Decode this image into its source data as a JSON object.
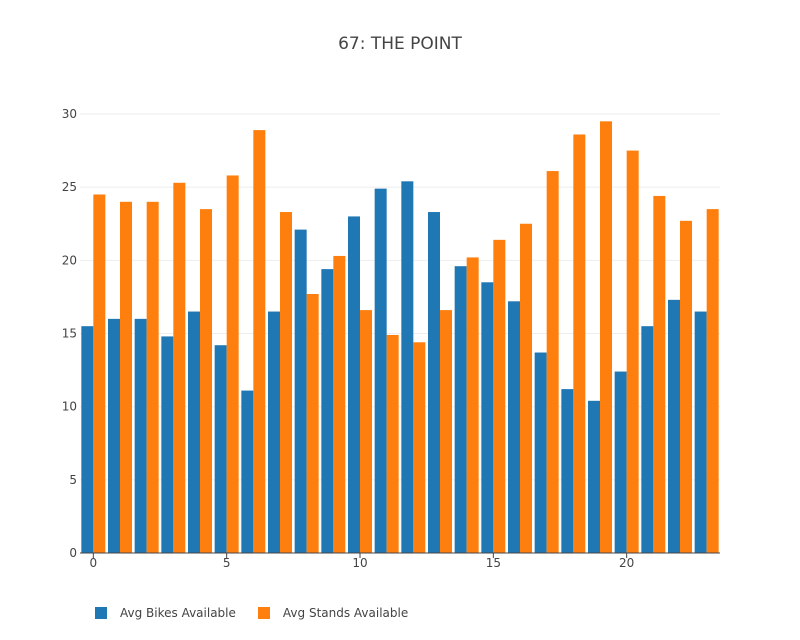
{
  "chart_data": {
    "type": "bar",
    "title": "67: THE POINT",
    "xlabel": "",
    "ylabel": "",
    "x": [
      0,
      1,
      2,
      3,
      4,
      5,
      6,
      7,
      8,
      9,
      10,
      11,
      12,
      13,
      14,
      15,
      16,
      17,
      18,
      19,
      20,
      21,
      22,
      23
    ],
    "xticks": [
      0,
      5,
      10,
      15,
      20
    ],
    "ylim": [
      0,
      30
    ],
    "yticks": [
      0,
      5,
      10,
      15,
      20,
      25,
      30
    ],
    "grid": true,
    "legend_position": "bottom-left",
    "series": [
      {
        "name": "Avg Bikes Available",
        "color": "#1f77b4",
        "values": [
          15.5,
          16.0,
          16.0,
          14.8,
          16.5,
          14.2,
          11.1,
          16.5,
          22.1,
          19.4,
          23.0,
          24.9,
          25.4,
          23.3,
          19.6,
          18.5,
          17.2,
          13.7,
          11.2,
          10.4,
          12.4,
          15.5,
          17.3,
          16.5
        ]
      },
      {
        "name": "Avg Stands Available",
        "color": "#ff7f0e",
        "values": [
          24.5,
          24.0,
          24.0,
          25.3,
          23.5,
          25.8,
          28.9,
          23.3,
          17.7,
          20.3,
          16.6,
          14.9,
          14.4,
          16.6,
          20.2,
          21.4,
          22.5,
          26.1,
          28.6,
          29.5,
          27.5,
          24.4,
          22.7,
          23.5
        ]
      }
    ]
  }
}
